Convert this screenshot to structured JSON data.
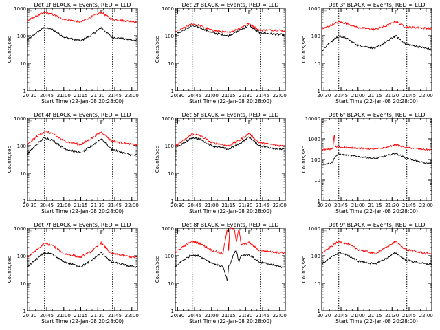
{
  "figure": {
    "ylabel": "Counts/sec",
    "xlabel": "Start Time (22-Jan-08 20:28:00)",
    "x_ticks": [
      "20:30",
      "20:45",
      "21:00",
      "21:15",
      "21:30",
      "21:45",
      "22:00"
    ],
    "y_ticks": [
      "1",
      "10",
      "100",
      "1000"
    ],
    "y_ticks_panel6": [
      "1",
      "10",
      "100",
      "1000",
      "10000"
    ],
    "corner_marks": [
      "E",
      "E"
    ]
  },
  "colors": {
    "events": "#000000",
    "lld": "#ff0000",
    "frame": "#000000"
  },
  "chart_data": [
    {
      "type": "line",
      "title": "Det 1f BLACK = Events, RED = LLD",
      "xlabel": "Start Time (22-Jan-08 20:28:00)",
      "ylabel": "Counts/sec",
      "y_scale": "log",
      "ylim": [
        1,
        1000
      ],
      "xlim": [
        "20:28",
        "22:05"
      ],
      "vlines": [
        "20:43",
        "21:43"
      ],
      "x": [
        "20:28",
        "20:35",
        "20:43",
        "20:50",
        "21:00",
        "21:15",
        "21:25",
        "21:33",
        "21:42",
        "22:00",
        "22:05"
      ],
      "series": [
        {
          "name": "Events",
          "color": "#000000",
          "values": [
            70,
            120,
            200,
            170,
            90,
            65,
            110,
            200,
            90,
            70,
            70
          ]
        },
        {
          "name": "LLD",
          "color": "#ff0000",
          "values": [
            350,
            500,
            700,
            600,
            400,
            320,
            500,
            720,
            400,
            330,
            330
          ]
        }
      ]
    },
    {
      "type": "line",
      "title": "Det 2f BLACK = Events, RED = LLD",
      "xlabel": "Start Time (22-Jan-08 20:28:00)",
      "ylabel": "Counts/sec",
      "y_scale": "log",
      "ylim": [
        1,
        1000
      ],
      "xlim": [
        "20:28",
        "22:05"
      ],
      "vlines": [
        "20:43",
        "21:43"
      ],
      "x": [
        "20:28",
        "20:35",
        "20:43",
        "20:50",
        "21:00",
        "21:15",
        "21:25",
        "21:33",
        "21:42",
        "22:00",
        "22:05"
      ],
      "series": [
        {
          "name": "Events",
          "color": "#000000",
          "values": [
            110,
            160,
            230,
            200,
            130,
            100,
            160,
            240,
            130,
            110,
            110
          ]
        },
        {
          "name": "LLD",
          "color": "#ff0000",
          "values": [
            140,
            190,
            270,
            230,
            160,
            130,
            190,
            280,
            160,
            160,
            150
          ]
        }
      ]
    },
    {
      "type": "line",
      "title": "Det 3f BLACK = Events, RED = LLD",
      "xlabel": "Start Time (22-Jan-08 20:28:00)",
      "ylabel": "Counts/sec",
      "y_scale": "log",
      "ylim": [
        1,
        1000
      ],
      "xlim": [
        "20:28",
        "22:05"
      ],
      "vlines": [
        "20:43",
        "21:43"
      ],
      "x": [
        "20:28",
        "20:35",
        "20:43",
        "20:50",
        "21:00",
        "21:15",
        "21:25",
        "21:33",
        "21:42",
        "22:00",
        "22:05"
      ],
      "series": [
        {
          "name": "Events",
          "color": "#000000",
          "values": [
            28,
            55,
            100,
            80,
            45,
            35,
            60,
            100,
            50,
            35,
            32
          ]
        },
        {
          "name": "LLD",
          "color": "#ff0000",
          "values": [
            170,
            230,
            320,
            280,
            200,
            170,
            230,
            330,
            210,
            190,
            180
          ]
        }
      ]
    },
    {
      "type": "line",
      "title": "Det 4f BLACK = Events, RED = LLD",
      "xlabel": "Start Time (22-Jan-08 20:28:00)",
      "ylabel": "Counts/sec",
      "y_scale": "log",
      "ylim": [
        1,
        1000
      ],
      "xlim": [
        "20:28",
        "22:05"
      ],
      "vlines": [
        "20:43",
        "21:43"
      ],
      "x": [
        "20:28",
        "20:35",
        "20:43",
        "20:50",
        "21:00",
        "21:15",
        "21:25",
        "21:33",
        "21:42",
        "22:00",
        "22:05"
      ],
      "series": [
        {
          "name": "Events",
          "color": "#000000",
          "values": [
            50,
            100,
            200,
            160,
            80,
            55,
            100,
            180,
            75,
            45,
            45
          ]
        },
        {
          "name": "LLD",
          "color": "#ff0000",
          "values": [
            110,
            200,
            330,
            280,
            150,
            110,
            190,
            320,
            150,
            110,
            110
          ]
        }
      ]
    },
    {
      "type": "line",
      "title": "Det 5f BLACK = Events, RED = LLD",
      "xlabel": "Start Time (22-Jan-08 20:28:00)",
      "ylabel": "Counts/sec",
      "y_scale": "log",
      "ylim": [
        1,
        1000
      ],
      "xlim": [
        "20:28",
        "22:05"
      ],
      "vlines": [
        "20:43",
        "21:43"
      ],
      "x": [
        "20:28",
        "20:35",
        "20:43",
        "20:50",
        "21:00",
        "21:15",
        "21:25",
        "21:33",
        "21:42",
        "22:00",
        "22:05"
      ],
      "series": [
        {
          "name": "Events",
          "color": "#000000",
          "values": [
            80,
            120,
            200,
            170,
            100,
            75,
            120,
            210,
            100,
            75,
            75
          ]
        },
        {
          "name": "LLD",
          "color": "#ff0000",
          "values": [
            100,
            150,
            270,
            230,
            130,
            100,
            160,
            280,
            130,
            100,
            100
          ]
        }
      ]
    },
    {
      "type": "line",
      "title": "Det 6f BLACK = Events, RED = LLD",
      "xlabel": "Start Time (22-Jan-08 20:28:00)",
      "ylabel": "Counts/sec",
      "y_scale": "log",
      "ylim": [
        1,
        10000
      ],
      "xlim": [
        "20:28",
        "22:05"
      ],
      "vlines": [
        "20:43",
        "21:43"
      ],
      "x": [
        "20:28",
        "20:35",
        "20:38",
        "20:39",
        "20:40",
        "20:43",
        "21:00",
        "21:15",
        "21:25",
        "21:33",
        "21:42",
        "22:00",
        "22:05"
      ],
      "series": [
        {
          "name": "Events",
          "color": "#000000",
          "values": [
            60,
            65,
            80,
            120,
            140,
            180,
            140,
            110,
            150,
            200,
            120,
            65,
            65
          ]
        },
        {
          "name": "LLD",
          "color": "#ff0000",
          "values": [
            300,
            310,
            350,
            2000,
            400,
            400,
            350,
            320,
            380,
            520,
            380,
            300,
            300
          ]
        }
      ]
    },
    {
      "type": "line",
      "title": "Det 7f BLACK = Events, RED = LLD",
      "xlabel": "Start Time (22-Jan-08 20:28:00)",
      "ylabel": "Counts/sec",
      "y_scale": "log",
      "ylim": [
        1,
        1000
      ],
      "xlim": [
        "20:28",
        "22:05"
      ],
      "vlines": [
        "20:43",
        "21:43"
      ],
      "x": [
        "20:28",
        "20:35",
        "20:43",
        "20:50",
        "21:00",
        "21:15",
        "21:25",
        "21:33",
        "21:42",
        "22:00",
        "22:05"
      ],
      "series": [
        {
          "name": "Events",
          "color": "#000000",
          "values": [
            40,
            70,
            130,
            110,
            60,
            40,
            70,
            130,
            60,
            40,
            40
          ]
        },
        {
          "name": "LLD",
          "color": "#ff0000",
          "values": [
            90,
            150,
            280,
            240,
            120,
            90,
            150,
            290,
            120,
            90,
            90
          ]
        }
      ]
    },
    {
      "type": "line",
      "title": "Det 8f BLACK = Events, RED = LLD",
      "xlabel": "Start Time (22-Jan-08 20:28:00)",
      "ylabel": "Counts/sec",
      "y_scale": "log",
      "ylim": [
        1,
        1000
      ],
      "xlim": [
        "20:28",
        "22:05"
      ],
      "vlines": [
        "20:43",
        "21:43"
      ],
      "x": [
        "20:28",
        "20:35",
        "20:43",
        "20:50",
        "21:00",
        "21:10",
        "21:14",
        "21:15",
        "21:16",
        "21:20",
        "21:22",
        "21:24",
        "21:26",
        "21:33",
        "21:42",
        "22:00",
        "22:05"
      ],
      "series": [
        {
          "name": "Events",
          "color": "#000000",
          "values": [
            40,
            70,
            110,
            95,
            55,
            40,
            12,
            40,
            45,
            130,
            150,
            60,
            100,
            110,
            60,
            40,
            40
          ]
        },
        {
          "name": "LLD",
          "color": "#ff0000",
          "values": [
            130,
            220,
            330,
            280,
            160,
            120,
            1000,
            130,
            1000,
            1000,
            300,
            1000,
            250,
            300,
            160,
            130,
            130
          ]
        }
      ]
    },
    {
      "type": "line",
      "title": "Det 9f BLACK = Events, RED = LLD",
      "xlabel": "Start Time (22-Jan-08 20:28:00)",
      "ylabel": "Counts/sec",
      "y_scale": "log",
      "ylim": [
        1,
        1000
      ],
      "xlim": [
        "20:28",
        "22:05"
      ],
      "vlines": [
        "20:43",
        "21:43"
      ],
      "x": [
        "20:28",
        "20:35",
        "20:43",
        "20:50",
        "21:00",
        "21:15",
        "21:25",
        "21:33",
        "21:42",
        "22:00",
        "22:05"
      ],
      "series": [
        {
          "name": "Events",
          "color": "#000000",
          "values": [
            50,
            80,
            130,
            110,
            65,
            50,
            80,
            130,
            70,
            50,
            50
          ]
        },
        {
          "name": "LLD",
          "color": "#ff0000",
          "values": [
            120,
            200,
            330,
            280,
            170,
            120,
            200,
            330,
            170,
            120,
            120
          ]
        }
      ]
    }
  ]
}
